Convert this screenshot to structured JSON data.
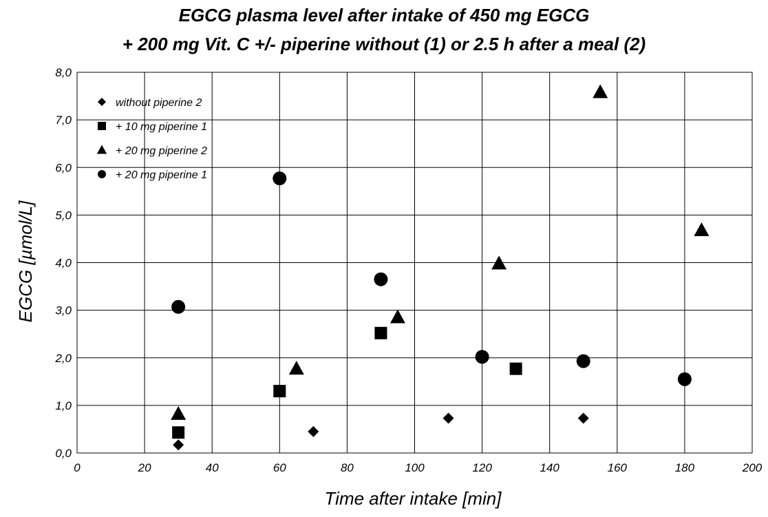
{
  "chart_data": {
    "type": "scatter",
    "title": [
      "EGCG plasma level after intake of  450 mg EGCG",
      "+ 200 mg Vit. C +/- piperine without (1) or 2.5 h after a meal (2)"
    ],
    "xlabel": "Time after intake [min]",
    "ylabel": "EGCG [µmol/L]",
    "xlim": [
      0,
      200
    ],
    "ylim": [
      0,
      8
    ],
    "x_ticks": [
      "0",
      "20",
      "40",
      "60",
      "80",
      "100",
      "120",
      "140",
      "160",
      "180",
      "200"
    ],
    "y_ticks": [
      "0,0",
      "1,0",
      "2,0",
      "3,0",
      "4,0",
      "5,0",
      "6,0",
      "7,0",
      "8,0"
    ],
    "grid": true,
    "legend_position": "top-left",
    "series": [
      {
        "name": "without piperine 2",
        "marker": "diamond",
        "color": "#000000",
        "points": [
          [
            30,
            0.17
          ],
          [
            70,
            0.45
          ],
          [
            110,
            0.73
          ],
          [
            150,
            0.73
          ]
        ]
      },
      {
        "name": "+ 10 mg piperine 1",
        "marker": "square",
        "color": "#000000",
        "points": [
          [
            30,
            0.43
          ],
          [
            60,
            1.3
          ],
          [
            90,
            2.52
          ],
          [
            130,
            1.77
          ]
        ]
      },
      {
        "name": "+ 20 mg piperine 2",
        "marker": "triangle",
        "color": "#000000",
        "points": [
          [
            30,
            0.82
          ],
          [
            65,
            1.77
          ],
          [
            95,
            2.85
          ],
          [
            125,
            3.98
          ],
          [
            155,
            7.58
          ],
          [
            185,
            4.68
          ]
        ]
      },
      {
        "name": "+ 20 mg piperine 1",
        "marker": "circle",
        "color": "#000000",
        "points": [
          [
            30,
            3.07
          ],
          [
            60,
            5.77
          ],
          [
            90,
            3.65
          ],
          [
            120,
            2.02
          ],
          [
            150,
            1.93
          ],
          [
            180,
            1.55
          ]
        ]
      }
    ]
  }
}
